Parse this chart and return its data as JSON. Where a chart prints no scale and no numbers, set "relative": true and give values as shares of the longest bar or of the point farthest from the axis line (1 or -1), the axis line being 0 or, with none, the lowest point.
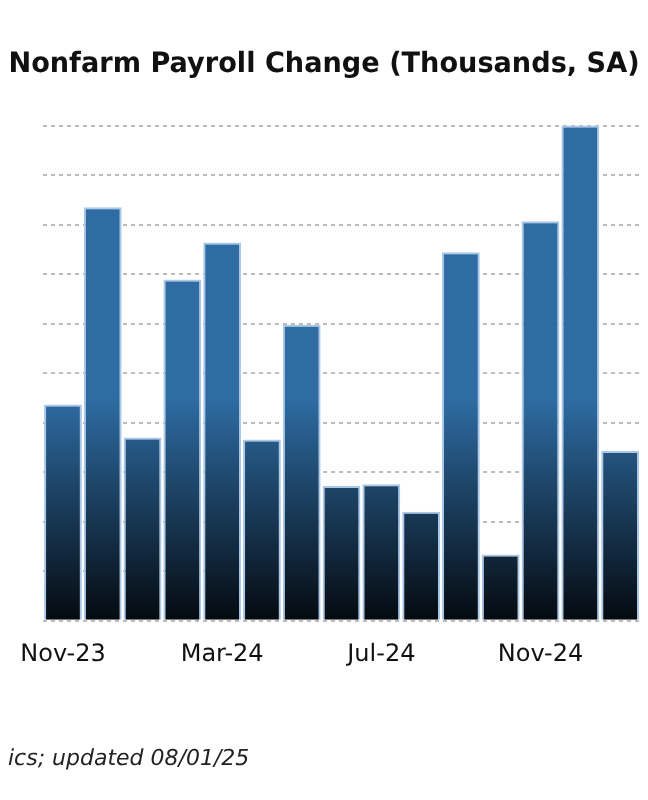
{
  "chart_data": {
    "type": "bar",
    "title": "Nonfarm Payroll Change (Thousands, SA)",
    "categories": [
      "Nov-23",
      null,
      null,
      null,
      "Mar-24",
      null,
      null,
      null,
      "Jul-24",
      null,
      null,
      null,
      "Nov-24",
      null,
      null
    ],
    "values": [
      0.437,
      0.835,
      0.37,
      0.689,
      0.764,
      0.366,
      0.598,
      0.272,
      0.276,
      0.22,
      0.744,
      0.134,
      0.807,
      1,
      0.343
    ],
    "color": "#2e6ca3",
    "relative": true,
    "grid": "y",
    "legend": false,
    "annotations": [
      "ics; updated 08/01/25"
    ]
  }
}
